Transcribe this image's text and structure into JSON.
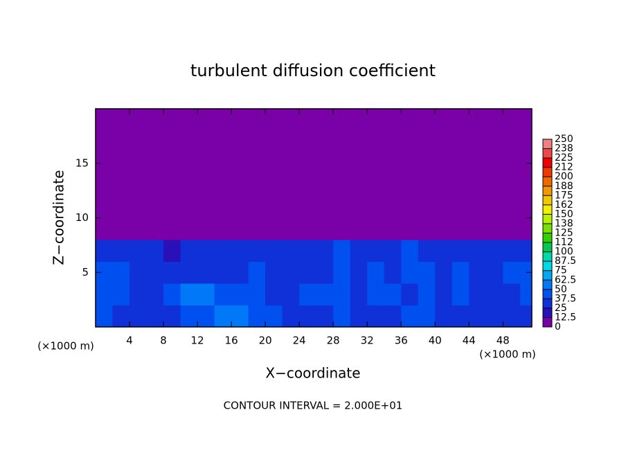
{
  "chart_data": {
    "type": "heatmap",
    "title": "turbulent diffusion coefficient",
    "x_label": "X−coordinate",
    "y_label": "Z−coordinate",
    "x_unit": "(×1000 m)",
    "footer": "CONTOUR INTERVAL = 2.000E+01",
    "xlim": [
      0,
      51.4
    ],
    "ylim": [
      0,
      20
    ],
    "xticks": [
      4,
      8,
      12,
      16,
      20,
      24,
      28,
      32,
      36,
      40,
      44,
      48
    ],
    "yticks": [
      5,
      10,
      15
    ],
    "x": [
      1,
      3,
      5,
      7,
      9,
      11,
      13,
      15,
      17,
      19,
      21,
      23,
      25,
      27,
      29,
      31,
      33,
      35,
      37,
      39,
      41,
      43,
      45,
      47,
      49,
      51
    ],
    "y": [
      1,
      3,
      5,
      7,
      9,
      11,
      13,
      15,
      17,
      19
    ],
    "z": [
      [
        40,
        35,
        30,
        25,
        30,
        40,
        45,
        55,
        50,
        40,
        45,
        35,
        30,
        35,
        40,
        30,
        35,
        30,
        40,
        45,
        30,
        30,
        35,
        25,
        30,
        30
      ],
      [
        45,
        40,
        35,
        30,
        40,
        50,
        55,
        45,
        40,
        45,
        35,
        30,
        40,
        45,
        40,
        35,
        40,
        45,
        35,
        40,
        35,
        40,
        30,
        35,
        35,
        40
      ],
      [
        40,
        45,
        35,
        30,
        30,
        35,
        30,
        35,
        30,
        40,
        35,
        30,
        35,
        30,
        40,
        35,
        45,
        35,
        40,
        40,
        35,
        40,
        35,
        30,
        40,
        40
      ],
      [
        35,
        30,
        35,
        25,
        20,
        30,
        30,
        30,
        25,
        30,
        25,
        30,
        30,
        35,
        40,
        30,
        30,
        35,
        40,
        35,
        35,
        30,
        25,
        30,
        35,
        35
      ],
      [
        5,
        5,
        5,
        0,
        0,
        0,
        0,
        0,
        0,
        0,
        0,
        0,
        0,
        0,
        0,
        0,
        0,
        5,
        10,
        5,
        0,
        0,
        0,
        0,
        5,
        5
      ],
      [
        0,
        0,
        0,
        0,
        0,
        0,
        0,
        0,
        0,
        0,
        0,
        0,
        0,
        0,
        0,
        0,
        0,
        0,
        0,
        0,
        0,
        0,
        0,
        0,
        0,
        0
      ],
      [
        0,
        0,
        0,
        0,
        0,
        0,
        0,
        0,
        0,
        0,
        0,
        0,
        0,
        0,
        0,
        0,
        0,
        0,
        0,
        0,
        0,
        0,
        0,
        0,
        0,
        0
      ],
      [
        0,
        0,
        0,
        0,
        0,
        0,
        0,
        0,
        0,
        0,
        0,
        0,
        0,
        0,
        0,
        0,
        0,
        0,
        0,
        0,
        0,
        0,
        0,
        0,
        0,
        0
      ],
      [
        0,
        0,
        0,
        0,
        0,
        0,
        0,
        0,
        0,
        0,
        0,
        0,
        0,
        0,
        0,
        0,
        0,
        0,
        0,
        0,
        0,
        0,
        0,
        0,
        0,
        0
      ],
      [
        0,
        0,
        0,
        0,
        0,
        0,
        0,
        0,
        0,
        0,
        0,
        0,
        0,
        0,
        0,
        0,
        0,
        0,
        0,
        0,
        0,
        0,
        0,
        0,
        0,
        0
      ]
    ],
    "colorbar_ticks": [
      0,
      12.5,
      25,
      37.5,
      50,
      62.5,
      75,
      87.5,
      100,
      {
        "value": 112.5,
        "label": "112"
      },
      125,
      {
        "value": 137.5,
        "label": "138"
      },
      150,
      {
        "value": 162.5,
        "label": "162"
      },
      175,
      {
        "value": 187.5,
        "label": "188"
      },
      200,
      {
        "value": 212.5,
        "label": "212"
      },
      225,
      {
        "value": 237.5,
        "label": "238"
      },
      250
    ],
    "colors": [
      "#7a00a8",
      "#2a10b8",
      "#1030d8",
      "#0050f0",
      "#0078f8",
      "#00a8f0",
      "#00d8e8",
      "#00d8a8",
      "#00c850",
      "#30d000",
      "#78e000",
      "#b8f000",
      "#f0f000",
      "#f0c800",
      "#f09800",
      "#f06800",
      "#f03800",
      "#f00000",
      "#f04848",
      "#f08080"
    ]
  }
}
